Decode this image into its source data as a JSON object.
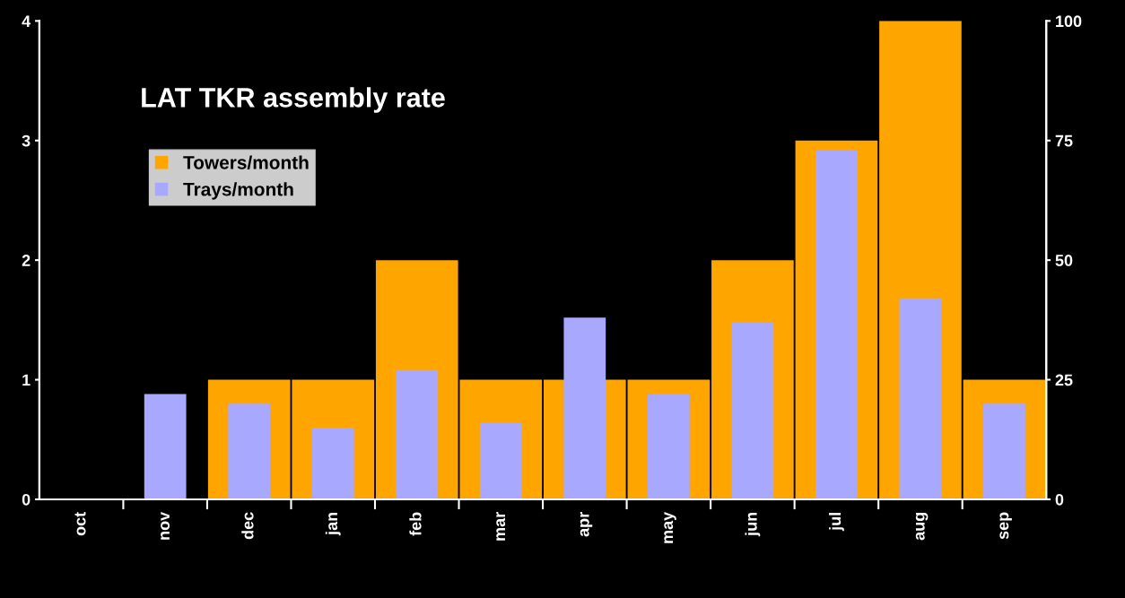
{
  "chart_data": {
    "type": "bar",
    "title": "LAT TKR assembly rate",
    "categories": [
      "oct",
      "nov",
      "dec",
      "jan",
      "feb",
      "mar",
      "apr",
      "may",
      "jun",
      "jul",
      "aug",
      "sep"
    ],
    "series": [
      {
        "name": "Towers/month",
        "color": "#ffa500",
        "values": [
          0,
          0,
          1,
          1,
          2,
          1,
          1,
          1,
          2,
          3,
          4,
          1
        ]
      },
      {
        "name": "Trays/month",
        "color": "#a8a8ff",
        "axis": "y2",
        "values": [
          null,
          22,
          20,
          15,
          27,
          16,
          38,
          22,
          37,
          73,
          42,
          20
        ]
      }
    ],
    "ylim": [
      0,
      4
    ],
    "yticks": [
      0,
      1,
      2,
      3,
      4
    ],
    "y2lim": [
      0,
      100
    ],
    "y2ticks": [
      0,
      25,
      50,
      75,
      100
    ],
    "grid": false,
    "legend": "top left"
  }
}
